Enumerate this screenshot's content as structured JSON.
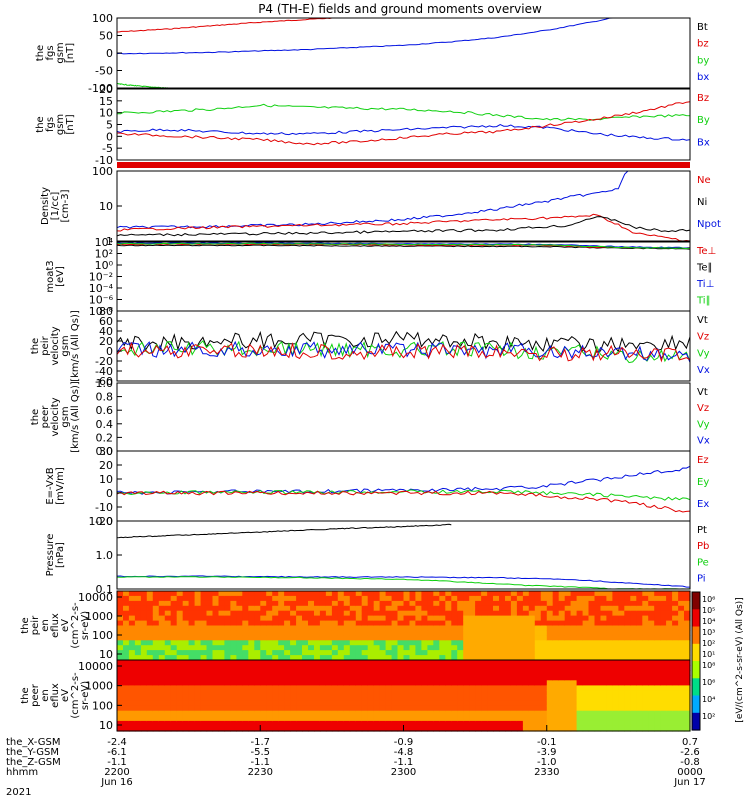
{
  "title": "P4 (TH-E) fields and ground moments overview",
  "colors": {
    "black": "#000000",
    "red": "#e00000",
    "green": "#10d010",
    "blue": "#0010e0",
    "frame": "#000000"
  },
  "chart_data": {
    "type": "line",
    "xaxis": {
      "ticks": [
        "2200",
        "2230",
        "2300",
        "2330",
        "0000"
      ],
      "rows": [
        {
          "label": "the_X-GSM",
          "values": [
            "-2.4",
            "-1.7",
            "-0.9",
            "-0.1",
            "0.7"
          ]
        },
        {
          "label": "the_Y-GSM",
          "values": [
            "-6.1",
            "-5.5",
            "-4.8",
            "-3.9",
            "-2.6"
          ]
        },
        {
          "label": "the_Z-GSM",
          "values": [
            "-1.1",
            "-1.1",
            "-1.1",
            "-1.0",
            "-0.8"
          ]
        },
        {
          "label": "hhmm",
          "values": [
            "2200",
            "2230",
            "2300",
            "2330",
            "0000"
          ]
        }
      ],
      "year": "2021",
      "date_start": "Jun 16",
      "date_end": "Jun 17",
      "xlim": [
        0,
        120
      ]
    },
    "panels": [
      {
        "id": "fgs_gsm",
        "ylabel": [
          "the",
          "fgs",
          "gsm",
          "[nT]"
        ],
        "yticks": [
          "100",
          "50",
          "0",
          "-50",
          "-100"
        ],
        "ylim": [
          -100,
          100
        ],
        "legend": [
          {
            "name": "Bt",
            "color": "#000000"
          },
          {
            "name": "bz",
            "color": "#e00000"
          },
          {
            "name": "by",
            "color": "#10d010"
          },
          {
            "name": "bx",
            "color": "#0010e0"
          }
        ],
        "series": [
          {
            "name": "bz",
            "color": "#e00000",
            "x": [
              0,
              10,
              20,
              30,
              40,
              50,
              60,
              70,
              80
            ],
            "y": [
              60,
              68,
              78,
              88,
              96,
              104,
              112,
              120,
              128
            ]
          },
          {
            "name": "bx",
            "color": "#0010e0",
            "x": [
              0,
              20,
              40,
              60,
              70,
              80,
              90,
              100,
              110
            ],
            "y": [
              -2,
              2,
              10,
              22,
              32,
              45,
              65,
              90,
              118
            ]
          },
          {
            "name": "by",
            "color": "#10d010",
            "x": [
              0,
              5,
              10,
              15,
              20
            ],
            "y": [
              -88,
              -95,
              -100,
              -105,
              -110
            ]
          }
        ]
      },
      {
        "id": "fgs_gsm_dsl",
        "ylabel": [
          "the",
          "fgs",
          "gsm",
          "[nT]"
        ],
        "yticks": [
          "20",
          "15",
          "10",
          "5",
          "0",
          "-5",
          "-10"
        ],
        "ylim": [
          -15,
          20
        ],
        "legend": [
          {
            "name": "Bz",
            "color": "#e00000"
          },
          {
            "name": "By",
            "color": "#10d010"
          },
          {
            "name": "Bx",
            "color": "#0010e0"
          }
        ],
        "series": [
          {
            "name": "By",
            "color": "#10d010",
            "x": [
              0,
              10,
              20,
              30,
              40,
              50,
              60,
              70,
              80,
              90,
              100,
              110,
              120
            ],
            "y": [
              8,
              9,
              10,
              12,
              11,
              10.5,
              10,
              9,
              7,
              5,
              5,
              6.5,
              7
            ]
          },
          {
            "name": "Bx",
            "color": "#0010e0",
            "x": [
              0,
              10,
              20,
              30,
              40,
              50,
              60,
              70,
              80,
              90,
              100,
              110,
              120
            ],
            "y": [
              -1,
              0,
              -1,
              -2,
              -2,
              -1,
              0,
              1,
              2,
              1,
              -2,
              -4,
              -5
            ]
          },
          {
            "name": "Bz",
            "color": "#e00000",
            "x": [
              0,
              10,
              20,
              30,
              40,
              50,
              60,
              70,
              80,
              90,
              100,
              110,
              120
            ],
            "y": [
              -2,
              -3,
              -4,
              -5,
              -7,
              -6,
              -4,
              -2,
              -1,
              2,
              5,
              9,
              14
            ]
          }
        ]
      },
      {
        "id": "density",
        "ylabel": [
          "Density",
          "[1/cc]",
          "[cm-3]"
        ],
        "yticks": [
          "100",
          "10",
          "1"
        ],
        "ylim": [
          0.3,
          150
        ],
        "scale": "log",
        "legend": [
          {
            "name": "Ne",
            "color": "#e00000"
          },
          {
            "name": "Ni",
            "color": "#000000"
          },
          {
            "name": "Npot",
            "color": "#0010e0"
          }
        ],
        "series": [
          {
            "name": "Npot",
            "color": "#0010e0",
            "x": [
              0,
              20,
              40,
              60,
              70,
              80,
              90,
              100,
              105,
              106,
              107
            ],
            "y": [
              1.0,
              1.1,
              1.3,
              2.0,
              3.0,
              5.0,
              10.0,
              20.0,
              30.0,
              80.0,
              150.0
            ]
          },
          {
            "name": "Ne",
            "color": "#e00000",
            "x": [
              0,
              20,
              40,
              60,
              80,
              95,
              100,
              104,
              108,
              115,
              120
            ],
            "y": [
              0.8,
              1.0,
              1.2,
              1.4,
              2.0,
              2.5,
              3.0,
              1.5,
              0.6,
              0.4,
              0.3
            ]
          },
          {
            "name": "Ni",
            "color": "#000000",
            "x": [
              0,
              20,
              40,
              60,
              80,
              95,
              100,
              104,
              108,
              115,
              120
            ],
            "y": [
              0.5,
              0.55,
              0.6,
              0.7,
              0.8,
              1.2,
              2.5,
              2.0,
              1.0,
              0.7,
              0.8
            ]
          }
        ]
      },
      {
        "id": "moat3",
        "ylabel": [
          "moat3",
          "[eV]"
        ],
        "yticks": [
          "10⁴",
          "10²",
          "10⁰",
          "10⁻²",
          "10⁻⁴",
          "10⁻⁶",
          "10⁻⁸"
        ],
        "ylim": [
          -8,
          4
        ],
        "scale": "log10-exponent",
        "legend": [
          {
            "name": "Te⊥",
            "color": "#e00000"
          },
          {
            "name": "Te∥",
            "color": "#000000"
          },
          {
            "name": "Ti⊥",
            "color": "#0010e0"
          },
          {
            "name": "Ti∥",
            "color": "#10d010"
          }
        ],
        "series": [
          {
            "name": "Te∥",
            "color": "#000000",
            "x": [
              0,
              30,
              60,
              90,
              100,
              110,
              120
            ],
            "y": [
              3.4,
              3.4,
              3.3,
              3.2,
              3.0,
              2.9,
              2.8
            ]
          },
          {
            "name": "Te⊥",
            "color": "#e00000",
            "x": [
              0,
              30,
              60,
              90,
              100,
              110,
              120
            ],
            "y": [
              3.6,
              3.6,
              3.5,
              3.4,
              3.1,
              3.0,
              3.0
            ]
          },
          {
            "name": "Ti⊥",
            "color": "#0010e0",
            "x": [
              0,
              30,
              60,
              90,
              100,
              110,
              120
            ],
            "y": [
              3.8,
              3.8,
              3.7,
              3.6,
              3.3,
              3.1,
              3.0
            ]
          },
          {
            "name": "Ti∥",
            "color": "#10d010",
            "x": [
              0,
              30,
              60,
              90,
              100,
              110,
              120
            ],
            "y": [
              3.7,
              3.7,
              3.6,
              3.5,
              3.2,
              3.0,
              2.9
            ]
          }
        ]
      },
      {
        "id": "peir_velocity",
        "ylabel": [
          "the",
          "peir",
          "velocity",
          "gsm",
          "[km/s (All Qs)]"
        ],
        "yticks": [
          "80",
          "60",
          "40",
          "20",
          "0",
          "-20",
          "-40",
          "-60"
        ],
        "ylim": [
          -60,
          80
        ],
        "legend": [
          {
            "name": "Vt",
            "color": "#000000"
          },
          {
            "name": "Vz",
            "color": "#e00000"
          },
          {
            "name": "Vy",
            "color": "#10d010"
          },
          {
            "name": "Vx",
            "color": "#0010e0"
          }
        ],
        "series": [
          {
            "name": "Vt",
            "color": "#000000",
            "x": [
              0,
              20,
              40,
              60,
              80,
              100,
              120
            ],
            "y": [
              15,
              20,
              22,
              25,
              18,
              12,
              18
            ]
          },
          {
            "name": "Vy",
            "color": "#10d010",
            "x": [
              0,
              20,
              40,
              60,
              80,
              100,
              120
            ],
            "y": [
              3,
              5,
              4,
              3,
              2,
              -5,
              -15
            ]
          },
          {
            "name": "Vx",
            "color": "#0010e0",
            "x": [
              0,
              20,
              40,
              60,
              80,
              100,
              120
            ],
            "y": [
              2,
              2,
              3,
              2,
              1,
              -3,
              -8
            ]
          },
          {
            "name": "Vz",
            "color": "#e00000",
            "x": [
              0,
              20,
              40,
              60,
              80,
              100,
              120
            ],
            "y": [
              0,
              2,
              0,
              -2,
              -3,
              -5,
              -8
            ]
          }
        ]
      },
      {
        "id": "peer_velocity",
        "ylabel": [
          "the",
          "peer",
          "velocity",
          "gsm",
          "[km/s (All Qs)]"
        ],
        "yticks": [
          "1.0",
          "0.8",
          "0.6",
          "0.4",
          "0.2",
          "0.0"
        ],
        "ylim": [
          0,
          1
        ],
        "legend": [
          {
            "name": "Vt",
            "color": "#000000"
          },
          {
            "name": "Vz",
            "color": "#e00000"
          },
          {
            "name": "Vy",
            "color": "#10d010"
          },
          {
            "name": "Vx",
            "color": "#0010e0"
          }
        ],
        "series": []
      },
      {
        "id": "e_vxb",
        "ylabel": [
          "E=-VxB",
          "[mV/m]"
        ],
        "yticks": [
          "30",
          "20",
          "10",
          "0",
          "-10",
          "-20"
        ],
        "ylim": [
          -20,
          30
        ],
        "legend": [
          {
            "name": "Ez",
            "color": "#e00000"
          },
          {
            "name": "Ey",
            "color": "#10d010"
          },
          {
            "name": "Ex",
            "color": "#0010e0"
          }
        ],
        "series": [
          {
            "name": "Ex",
            "color": "#0010e0",
            "x": [
              0,
              20,
              40,
              60,
              80,
              90,
              100,
              110,
              120
            ],
            "y": [
              0,
              1,
              1,
              2,
              3,
              5,
              9,
              14,
              18
            ]
          },
          {
            "name": "Ey",
            "color": "#10d010",
            "x": [
              0,
              20,
              40,
              60,
              80,
              90,
              100,
              110,
              120
            ],
            "y": [
              0,
              0.5,
              0.5,
              1,
              1,
              0,
              -1,
              -3,
              -5
            ]
          },
          {
            "name": "Ez",
            "color": "#e00000",
            "x": [
              0,
              20,
              40,
              60,
              80,
              90,
              100,
              110,
              120
            ],
            "y": [
              0,
              0,
              0,
              0,
              0,
              -2,
              -4,
              -8,
              -14
            ]
          }
        ]
      },
      {
        "id": "pressure",
        "ylabel": [
          "Pressure",
          "[nPa]"
        ],
        "yticks": [
          "10.0",
          "1.0",
          "0.1"
        ],
        "ylim": [
          0.05,
          25
        ],
        "scale": "log",
        "legend": [
          {
            "name": "Pt",
            "color": "#000000"
          },
          {
            "name": "Pb",
            "color": "#e00000"
          },
          {
            "name": "Pe",
            "color": "#10d010"
          },
          {
            "name": "Pi",
            "color": "#0010e0"
          }
        ],
        "series": [
          {
            "name": "Pt",
            "color": "#000000",
            "x": [
              0,
              15,
              30,
              45,
              60,
              70
            ],
            "y": [
              5.5,
              7.0,
              9.0,
              12.0,
              15.0,
              18.0
            ]
          },
          {
            "name": "Pi",
            "color": "#0010e0",
            "x": [
              0,
              20,
              40,
              60,
              80,
              95,
              105,
              115,
              120
            ],
            "y": [
              0.16,
              0.16,
              0.15,
              0.15,
              0.14,
              0.12,
              0.09,
              0.07,
              0.06
            ]
          },
          {
            "name": "Pe",
            "color": "#10d010",
            "x": [
              0,
              20,
              40,
              60,
              75,
              85,
              95,
              105,
              120
            ],
            "y": [
              0.15,
              0.15,
              0.14,
              0.12,
              0.09,
              0.07,
              0.06,
              0.05,
              0.05
            ]
          }
        ]
      },
      {
        "id": "peir_eflux",
        "ylabel": [
          "the",
          "peir",
          "en",
          "eflux",
          "eV",
          "(cm^2-s-",
          "sr-eV)"
        ],
        "yticks": [
          "10000",
          "1000",
          "100",
          "10"
        ],
        "type": "spectrogram"
      },
      {
        "id": "peer_eflux",
        "ylabel": [
          "the",
          "peer",
          "en",
          "eflux",
          "eV",
          "(cm^2-s-",
          "sr-eV)"
        ],
        "yticks": [
          "10000",
          "1000",
          "100",
          "10"
        ],
        "type": "spectrogram"
      }
    ],
    "colorbar": {
      "label": "[eV/(cm^2-s-sr-eV) (All Qs)]",
      "ticks_top": [
        "10⁶",
        "10⁵",
        "10⁴",
        "10³",
        "10²",
        "10¹"
      ],
      "ticks_bottom": [
        "10⁸",
        "10⁶",
        "10⁴",
        "10²"
      ]
    }
  }
}
